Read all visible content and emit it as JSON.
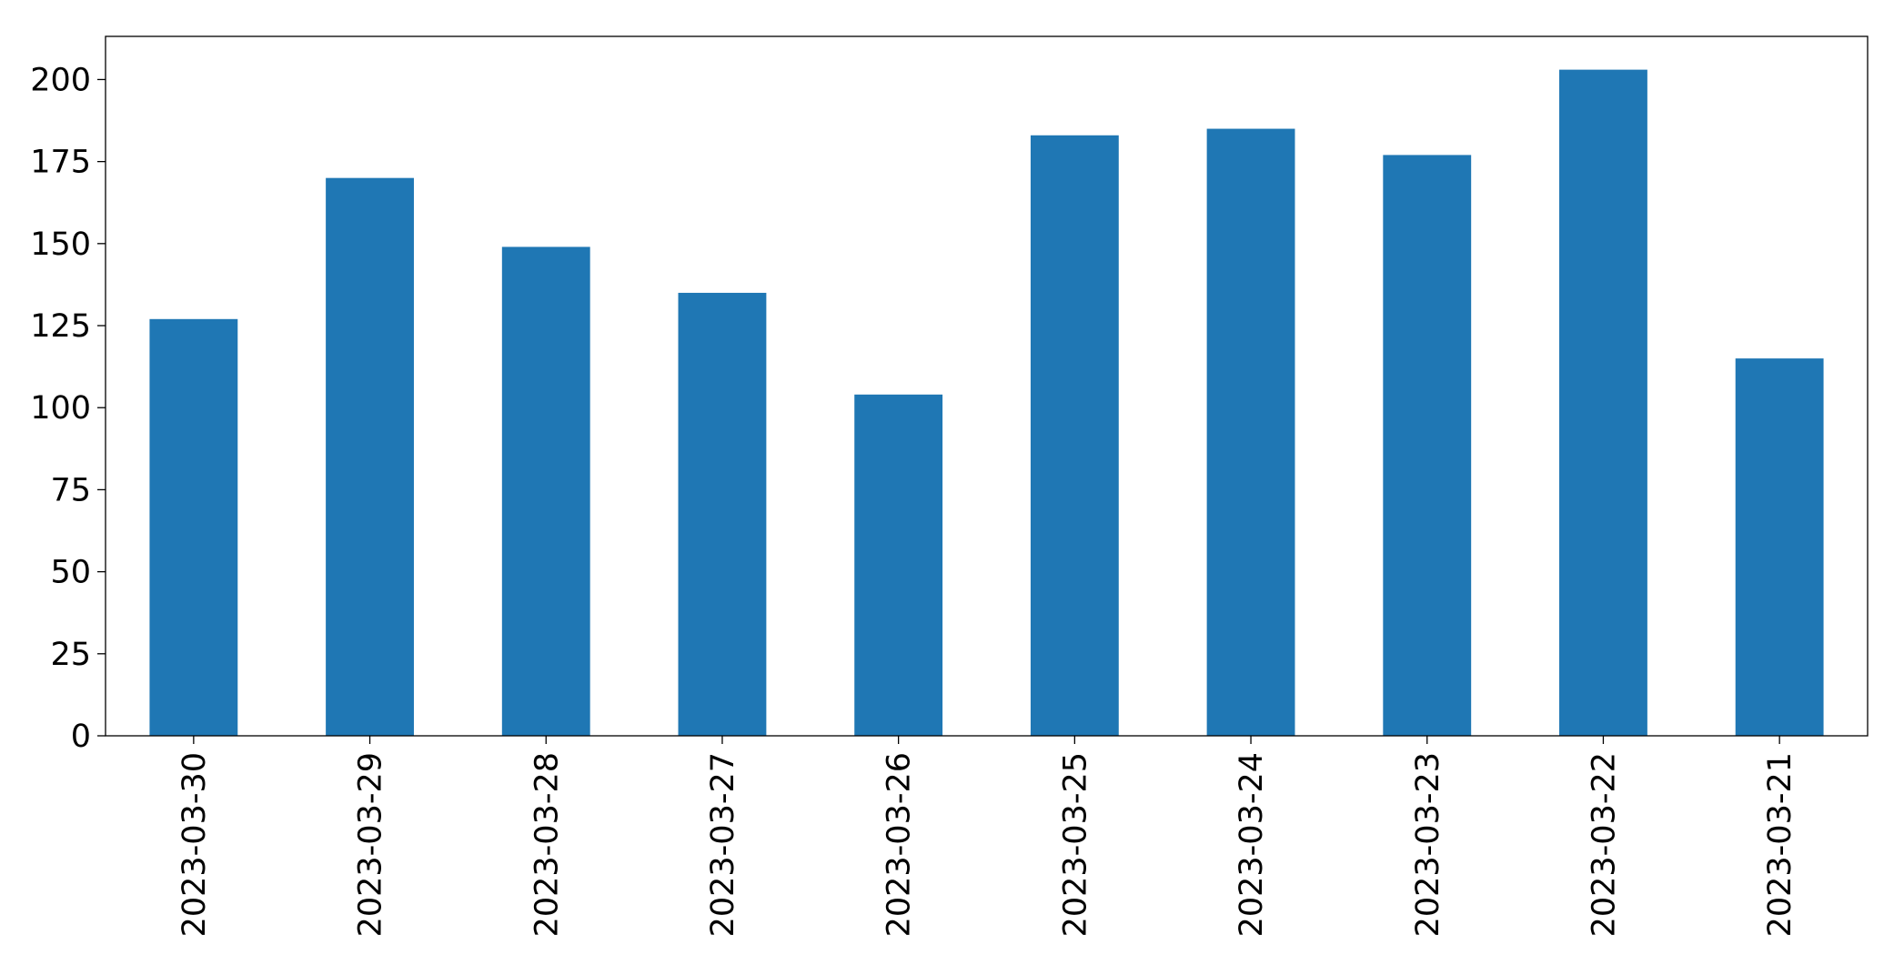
{
  "chart_data": {
    "type": "bar",
    "categories": [
      "2023-03-30",
      "2023-03-29",
      "2023-03-28",
      "2023-03-27",
      "2023-03-26",
      "2023-03-25",
      "2023-03-24",
      "2023-03-23",
      "2023-03-22",
      "2023-03-21"
    ],
    "values": [
      127,
      170,
      149,
      135,
      104,
      183,
      185,
      177,
      203,
      115
    ],
    "color": "#1f77b4",
    "ylim": [
      0,
      213.15
    ],
    "yticks": [
      0,
      25,
      50,
      75,
      100,
      125,
      150,
      175,
      200
    ],
    "grid": false
  }
}
